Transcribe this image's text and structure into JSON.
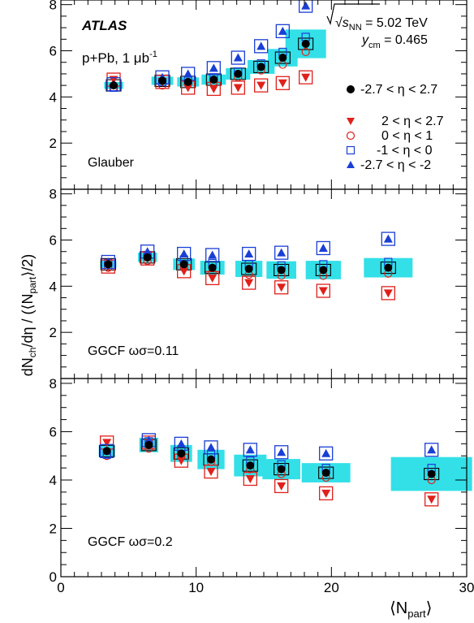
{
  "experiment_label": "ATLAS",
  "system_label": "p+Pb,  1 μb",
  "system_label_sup": "-1",
  "energy_label": {
    "prefix": "√s",
    "sub": "NN",
    "suffix": " = 5.02 TeV"
  },
  "rapidity_label": {
    "prefix": "y",
    "sub": "cm",
    "suffix": " = 0.465"
  },
  "y_axis_label": {
    "p1": "dN",
    "s1": "ch",
    "p2": "/dη / (⟨N",
    "s2": "part",
    "p3": "⟩/2)"
  },
  "x_axis_label": {
    "p1": "⟨N",
    "s1": "part",
    "p2": "⟩"
  },
  "legend": [
    {
      "key": "all",
      "label": "-2.7 < η < 2.7"
    },
    {
      "key": "fwd",
      "label": "2 < η < 2.7"
    },
    {
      "key": "mid_pos",
      "label": "0 < η < 1"
    },
    {
      "key": "mid_neg",
      "label": "-1 < η < 0"
    },
    {
      "key": "bwd",
      "label": "-2.7 < η < -2"
    }
  ],
  "colors": {
    "all": "#000000",
    "fwd": "#e0201b",
    "mid_pos": "#e0201b",
    "mid_neg": "#1a3fd6",
    "bwd": "#1a3fd6",
    "band": "#33e0e8"
  },
  "chart_data": [
    {
      "type": "scatter",
      "panel_label": "Glauber",
      "xlim": [
        0,
        30
      ],
      "ylim": [
        0,
        8.2
      ],
      "x_ticks": [
        0,
        10,
        20,
        30
      ],
      "y_ticks": [
        2,
        4,
        6,
        8
      ],
      "x": [
        3.9,
        7.5,
        9.4,
        11.3,
        13.1,
        14.8,
        16.4,
        18.1
      ],
      "band_halfwidth": [
        0.7,
        0.8,
        0.8,
        0.9,
        0.9,
        1.0,
        1.1,
        1.5
      ],
      "band_halfheight": [
        0.15,
        0.18,
        0.2,
        0.22,
        0.25,
        0.3,
        0.38,
        0.62
      ],
      "series": [
        {
          "key": "all",
          "values": [
            4.5,
            4.7,
            4.65,
            4.75,
            5.0,
            5.3,
            5.7,
            6.3
          ]
        },
        {
          "key": "fwd",
          "values": [
            4.75,
            4.65,
            4.4,
            4.35,
            4.4,
            4.5,
            4.6,
            4.85
          ]
        },
        {
          "key": "mid_pos",
          "values": [
            4.4,
            4.5,
            4.55,
            4.65,
            4.85,
            5.15,
            5.4,
            5.95
          ]
        },
        {
          "key": "mid_neg",
          "values": [
            4.4,
            4.65,
            4.7,
            4.85,
            5.1,
            5.45,
            5.95,
            6.6
          ]
        },
        {
          "key": "bwd",
          "values": [
            4.55,
            4.85,
            5.0,
            5.25,
            5.7,
            6.2,
            6.85,
            7.95
          ]
        }
      ]
    },
    {
      "type": "scatter",
      "panel_label": "GGCF ωσ=0.11",
      "xlim": [
        0,
        30
      ],
      "ylim": [
        0,
        8.2
      ],
      "x_ticks": [
        0,
        10,
        20,
        30
      ],
      "y_ticks": [
        2,
        4,
        6,
        8
      ],
      "x": [
        3.5,
        6.4,
        9.1,
        11.2,
        13.9,
        16.3,
        19.4,
        24.2
      ],
      "band_halfwidth": [
        0.6,
        0.7,
        0.8,
        0.9,
        1.0,
        1.1,
        1.3,
        1.8
      ],
      "band_halfheight": [
        0.15,
        0.2,
        0.25,
        0.3,
        0.35,
        0.38,
        0.4,
        0.42
      ],
      "series": [
        {
          "key": "all",
          "values": [
            4.95,
            5.25,
            4.95,
            4.8,
            4.75,
            4.7,
            4.7,
            4.8
          ]
        },
        {
          "key": "fwd",
          "values": [
            4.85,
            5.2,
            4.65,
            4.35,
            4.15,
            3.95,
            3.8,
            3.7
          ]
        },
        {
          "key": "mid_pos",
          "values": [
            4.8,
            5.1,
            4.8,
            4.6,
            4.5,
            4.45,
            4.45,
            4.55
          ]
        },
        {
          "key": "mid_neg",
          "values": [
            5.0,
            5.35,
            5.15,
            5.0,
            4.95,
            4.9,
            4.95,
            5.05
          ]
        },
        {
          "key": "bwd",
          "values": [
            5.05,
            5.5,
            5.4,
            5.35,
            5.4,
            5.45,
            5.65,
            6.05
          ]
        }
      ]
    },
    {
      "type": "scatter",
      "panel_label": "GGCF ωσ=0.2",
      "xlim": [
        0,
        30
      ],
      "ylim": [
        0,
        8.2
      ],
      "x_ticks": [
        0,
        10,
        20,
        30
      ],
      "y_ticks": [
        2,
        4,
        6,
        8
      ],
      "x": [
        3.4,
        6.5,
        8.9,
        11.1,
        14.0,
        16.3,
        19.6,
        27.4
      ],
      "band_halfwidth": [
        0.6,
        0.7,
        0.8,
        1.0,
        1.2,
        1.4,
        1.8,
        3.0
      ],
      "band_halfheight": [
        0.25,
        0.3,
        0.35,
        0.4,
        0.45,
        0.42,
        0.4,
        0.7
      ],
      "series": [
        {
          "key": "all",
          "values": [
            5.2,
            5.45,
            5.1,
            4.85,
            4.6,
            4.45,
            4.3,
            4.25
          ]
        },
        {
          "key": "fwd",
          "values": [
            5.55,
            5.55,
            4.8,
            4.35,
            4.05,
            3.75,
            3.45,
            3.2
          ]
        },
        {
          "key": "mid_pos",
          "values": [
            5.0,
            5.3,
            5.0,
            4.75,
            4.45,
            4.25,
            4.1,
            4.0
          ]
        },
        {
          "key": "mid_neg",
          "values": [
            5.05,
            5.6,
            5.25,
            5.05,
            4.8,
            4.65,
            4.5,
            4.5
          ]
        },
        {
          "key": "bwd",
          "values": [
            5.2,
            5.65,
            5.5,
            5.35,
            5.25,
            5.15,
            5.1,
            5.25
          ]
        }
      ]
    }
  ]
}
